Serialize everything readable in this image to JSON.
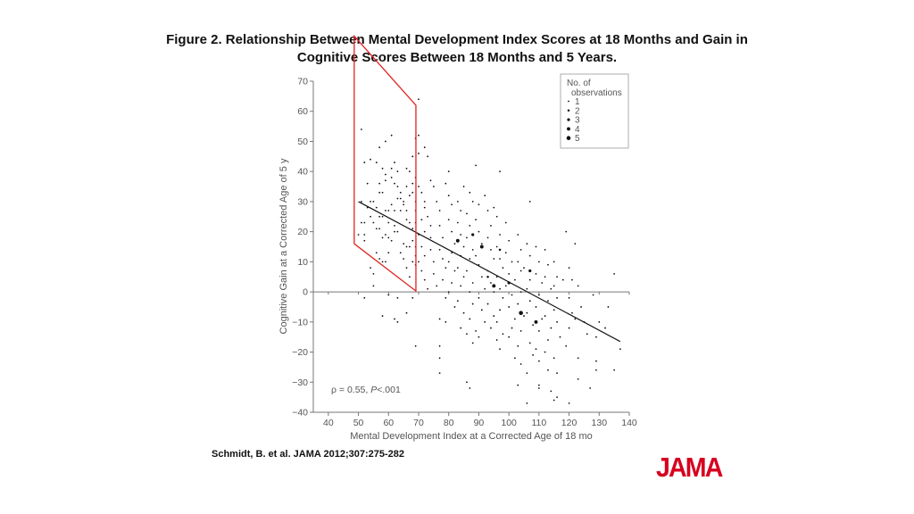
{
  "title": {
    "line1": "Figure 2. Relationship Between Mental Development Index Scores at 18 Months and Gain in",
    "line2": "Cognitive Scores Between 18 Months and 5 Years."
  },
  "citation": "Schmidt, B. et al. JAMA 2012;307:275-282",
  "logo": "JAMA",
  "colors": {
    "logo": "#d7001f",
    "highlight_box": "#e02020",
    "points": "#111111",
    "axes": "#777777"
  },
  "chart_data": {
    "type": "scatter",
    "xlabel": "Mental Development Index at a Corrected Age of 18 mo",
    "ylabel": "Cognitive Gain at a Corrected Age of 5 y",
    "xlim": [
      35,
      140
    ],
    "ylim": [
      -40,
      70
    ],
    "xticks": [
      40,
      50,
      60,
      70,
      80,
      90,
      100,
      110,
      120,
      130,
      140
    ],
    "yticks": [
      70,
      60,
      50,
      40,
      30,
      20,
      10,
      0,
      -10,
      -20,
      -30,
      -40
    ],
    "grid": false,
    "annotation": {
      "text_rho": "ρ = 0.55, ",
      "text_p": "P",
      "text_rest": "<.001"
    },
    "legend": {
      "title_line1": "No. of",
      "title_line2": "observations",
      "entries": [
        "1",
        "2",
        "3",
        "4",
        "5"
      ],
      "placement": "top-right"
    },
    "regression_line": {
      "x": [
        50,
        137
      ],
      "y": [
        30,
        -16.5
      ]
    },
    "highlight_region": {
      "vertices": [
        [
          48.6,
          85
        ],
        [
          69.1,
          62
        ],
        [
          69.1,
          0.3
        ],
        [
          48.6,
          16
        ]
      ]
    },
    "points": [
      [
        51,
        54
      ],
      [
        61,
        52
      ],
      [
        59,
        50
      ],
      [
        57,
        48
      ],
      [
        54,
        44
      ],
      [
        52,
        43
      ],
      [
        56,
        43
      ],
      [
        62,
        43
      ],
      [
        53,
        36
      ],
      [
        57,
        36
      ],
      [
        51,
        23
      ],
      [
        52,
        23
      ],
      [
        52,
        17
      ],
      [
        52,
        19
      ],
      [
        50,
        19
      ],
      [
        54,
        8
      ],
      [
        55,
        6
      ],
      [
        55,
        2
      ],
      [
        52,
        -2
      ],
      [
        60,
        -1
      ],
      [
        58,
        -8
      ],
      [
        62,
        -9
      ],
      [
        63,
        -10
      ],
      [
        63,
        -2
      ],
      [
        66,
        -7
      ],
      [
        68,
        -2
      ],
      [
        69,
        -18
      ],
      [
        70,
        64
      ],
      [
        70,
        52
      ],
      [
        70,
        46
      ],
      [
        72,
        48
      ],
      [
        73,
        45
      ],
      [
        77,
        -22
      ],
      [
        77,
        -27
      ],
      [
        77,
        -18
      ],
      [
        86,
        -30
      ],
      [
        87,
        -32
      ],
      [
        89,
        42
      ],
      [
        88,
        -17
      ],
      [
        97,
        40
      ],
      [
        107,
        30
      ],
      [
        119,
        20
      ],
      [
        122,
        16
      ],
      [
        135,
        6
      ],
      [
        137,
        -19
      ],
      [
        133,
        -5
      ],
      [
        132,
        -12
      ],
      [
        129,
        -23
      ],
      [
        129,
        -26
      ],
      [
        135,
        -26
      ],
      [
        127,
        -32
      ],
      [
        123,
        -29
      ],
      [
        120,
        -37
      ],
      [
        114,
        -33
      ],
      [
        115,
        -36
      ],
      [
        116,
        -35
      ],
      [
        106,
        -37
      ],
      [
        103,
        -31
      ],
      [
        110,
        -31
      ],
      [
        110,
        -32
      ],
      [
        119,
        -18
      ],
      [
        123,
        -22
      ],
      [
        113,
        -26
      ],
      [
        116,
        -27
      ],
      [
        106,
        -27
      ],
      [
        55,
        30
      ],
      [
        56,
        28
      ],
      [
        57,
        33
      ],
      [
        58,
        33
      ],
      [
        58,
        25
      ],
      [
        57,
        25
      ],
      [
        56,
        21
      ],
      [
        57,
        21
      ],
      [
        58,
        18
      ],
      [
        59,
        19
      ],
      [
        60,
        18
      ],
      [
        61,
        17
      ],
      [
        59,
        27
      ],
      [
        60,
        27
      ],
      [
        61,
        29
      ],
      [
        62,
        27
      ],
      [
        63,
        31
      ],
      [
        64,
        31
      ],
      [
        64,
        27
      ],
      [
        65,
        29
      ],
      [
        66,
        27
      ],
      [
        66,
        24
      ],
      [
        67,
        23
      ],
      [
        68,
        21
      ],
      [
        68,
        17
      ],
      [
        67,
        15
      ],
      [
        66,
        15
      ],
      [
        65,
        16
      ],
      [
        64,
        13
      ],
      [
        63,
        20
      ],
      [
        62,
        20
      ],
      [
        60,
        13
      ],
      [
        56,
        13
      ],
      [
        57,
        11
      ],
      [
        58,
        10
      ],
      [
        59,
        10
      ],
      [
        54,
        30
      ],
      [
        53,
        28
      ],
      [
        54,
        25
      ],
      [
        55,
        23
      ],
      [
        51,
        30
      ],
      [
        58,
        41
      ],
      [
        59,
        39
      ],
      [
        61,
        38
      ],
      [
        62,
        36
      ],
      [
        63,
        35
      ],
      [
        64,
        33
      ],
      [
        65,
        30
      ],
      [
        66,
        35
      ],
      [
        67,
        32
      ],
      [
        68,
        33
      ],
      [
        68,
        36
      ],
      [
        69,
        38
      ],
      [
        69,
        30
      ],
      [
        69,
        27
      ],
      [
        69,
        23
      ],
      [
        69,
        15
      ],
      [
        69,
        12
      ],
      [
        69,
        9
      ],
      [
        68,
        10
      ],
      [
        67,
        5
      ],
      [
        66,
        8
      ],
      [
        65,
        11
      ],
      [
        62,
        22
      ],
      [
        60,
        23
      ],
      [
        59,
        37
      ],
      [
        61,
        41
      ],
      [
        63,
        40
      ],
      [
        66,
        41
      ],
      [
        67,
        40
      ],
      [
        68,
        45
      ],
      [
        69,
        51
      ],
      [
        70,
        35
      ],
      [
        71,
        33
      ],
      [
        72,
        28
      ],
      [
        71,
        24
      ],
      [
        72,
        20
      ],
      [
        70,
        19
      ],
      [
        71,
        15
      ],
      [
        72,
        12
      ],
      [
        70,
        10
      ],
      [
        71,
        7
      ],
      [
        72,
        4
      ],
      [
        73,
        1
      ],
      [
        72,
        30
      ],
      [
        73,
        25
      ],
      [
        74,
        22
      ],
      [
        74,
        18
      ],
      [
        74,
        14
      ],
      [
        75,
        10
      ],
      [
        75,
        6
      ],
      [
        76,
        2
      ],
      [
        74,
        37
      ],
      [
        75,
        35
      ],
      [
        76,
        30
      ],
      [
        77,
        27
      ],
      [
        77,
        22
      ],
      [
        78,
        18
      ],
      [
        77,
        14
      ],
      [
        78,
        11
      ],
      [
        79,
        8
      ],
      [
        78,
        4
      ],
      [
        79,
        -2
      ],
      [
        80,
        40
      ],
      [
        79,
        36
      ],
      [
        80,
        32
      ],
      [
        81,
        29
      ],
      [
        80,
        24
      ],
      [
        81,
        20
      ],
      [
        82,
        16
      ],
      [
        81,
        13
      ],
      [
        80,
        10
      ],
      [
        82,
        7
      ],
      [
        81,
        3
      ],
      [
        80,
        0
      ],
      [
        82,
        -5
      ],
      [
        77,
        -9
      ],
      [
        79,
        -10
      ],
      [
        83,
        30
      ],
      [
        84,
        27
      ],
      [
        83,
        23
      ],
      [
        84,
        19
      ],
      [
        85,
        15
      ],
      [
        84,
        12
      ],
      [
        83,
        8
      ],
      [
        85,
        5
      ],
      [
        84,
        2
      ],
      [
        83,
        -3
      ],
      [
        85,
        -7
      ],
      [
        84,
        -12
      ],
      [
        86,
        -14
      ],
      [
        85,
        35
      ],
      [
        87,
        33
      ],
      [
        86,
        26
      ],
      [
        87,
        22
      ],
      [
        86,
        18
      ],
      [
        88,
        14
      ],
      [
        87,
        11
      ],
      [
        86,
        7
      ],
      [
        88,
        3
      ],
      [
        87,
        0
      ],
      [
        88,
        -4
      ],
      [
        87,
        -9
      ],
      [
        89,
        -13
      ],
      [
        88,
        30
      ],
      [
        90,
        29
      ],
      [
        89,
        24
      ],
      [
        90,
        20
      ],
      [
        91,
        16
      ],
      [
        89,
        12
      ],
      [
        90,
        9
      ],
      [
        91,
        5
      ],
      [
        92,
        1
      ],
      [
        90,
        -2
      ],
      [
        91,
        -6
      ],
      [
        92,
        -10
      ],
      [
        90,
        -15
      ],
      [
        92,
        32
      ],
      [
        93,
        27
      ],
      [
        94,
        22
      ],
      [
        93,
        18
      ],
      [
        94,
        14
      ],
      [
        95,
        11
      ],
      [
        93,
        7
      ],
      [
        94,
        3
      ],
      [
        95,
        0
      ],
      [
        93,
        -4
      ],
      [
        95,
        -8
      ],
      [
        94,
        -12
      ],
      [
        96,
        -16
      ],
      [
        95,
        28
      ],
      [
        96,
        25
      ],
      [
        97,
        19
      ],
      [
        96,
        15
      ],
      [
        97,
        11
      ],
      [
        98,
        8
      ],
      [
        96,
        5
      ],
      [
        97,
        1
      ],
      [
        98,
        -2
      ],
      [
        97,
        -6
      ],
      [
        96,
        -10
      ],
      [
        98,
        -14
      ],
      [
        97,
        -19
      ],
      [
        99,
        23
      ],
      [
        100,
        17
      ],
      [
        99,
        13
      ],
      [
        101,
        10
      ],
      [
        100,
        6
      ],
      [
        99,
        2
      ],
      [
        101,
        -1
      ],
      [
        100,
        -5
      ],
      [
        102,
        -9
      ],
      [
        101,
        -12
      ],
      [
        100,
        -15
      ],
      [
        102,
        -22
      ],
      [
        103,
        19
      ],
      [
        104,
        14
      ],
      [
        103,
        10
      ],
      [
        104,
        7
      ],
      [
        102,
        4
      ],
      [
        104,
        0
      ],
      [
        103,
        -4
      ],
      [
        105,
        -8
      ],
      [
        104,
        -13
      ],
      [
        103,
        -18
      ],
      [
        104,
        -24
      ],
      [
        106,
        16
      ],
      [
        107,
        12
      ],
      [
        105,
        8
      ],
      [
        107,
        4
      ],
      [
        106,
        1
      ],
      [
        107,
        -3
      ],
      [
        106,
        -7
      ],
      [
        108,
        -11
      ],
      [
        107,
        -17
      ],
      [
        108,
        -21
      ],
      [
        109,
        15
      ],
      [
        110,
        10
      ],
      [
        109,
        6
      ],
      [
        111,
        3
      ],
      [
        110,
        -1
      ],
      [
        109,
        -5
      ],
      [
        111,
        -9
      ],
      [
        110,
        -13
      ],
      [
        109,
        -19
      ],
      [
        110,
        -23
      ],
      [
        112,
        14
      ],
      [
        113,
        9
      ],
      [
        112,
        5
      ],
      [
        114,
        1
      ],
      [
        113,
        -3
      ],
      [
        112,
        -8
      ],
      [
        114,
        -12
      ],
      [
        113,
        -16
      ],
      [
        112,
        -20
      ],
      [
        115,
        10
      ],
      [
        116,
        5
      ],
      [
        115,
        2
      ],
      [
        116,
        -2
      ],
      [
        115,
        -6
      ],
      [
        116,
        -10
      ],
      [
        117,
        -15
      ],
      [
        115,
        -22
      ],
      [
        118,
        4
      ],
      [
        120,
        8
      ],
      [
        121,
        4
      ],
      [
        120,
        -2
      ],
      [
        121,
        -7
      ],
      [
        120,
        -12
      ],
      [
        122,
        -9
      ],
      [
        123,
        2
      ],
      [
        124,
        -5
      ],
      [
        125,
        -10
      ],
      [
        126,
        -14
      ],
      [
        128,
        -1
      ],
      [
        129,
        -15
      ],
      [
        130,
        -10
      ]
    ],
    "multi_points": [
      [
        83,
        17,
        4
      ],
      [
        91,
        15,
        4
      ],
      [
        95,
        2,
        4
      ],
      [
        104,
        -7,
        5
      ],
      [
        109,
        -10,
        4
      ],
      [
        107,
        7,
        3
      ],
      [
        88,
        19,
        3
      ],
      [
        100,
        3,
        3
      ],
      [
        93,
        5,
        2
      ],
      [
        97,
        14,
        2
      ]
    ]
  }
}
